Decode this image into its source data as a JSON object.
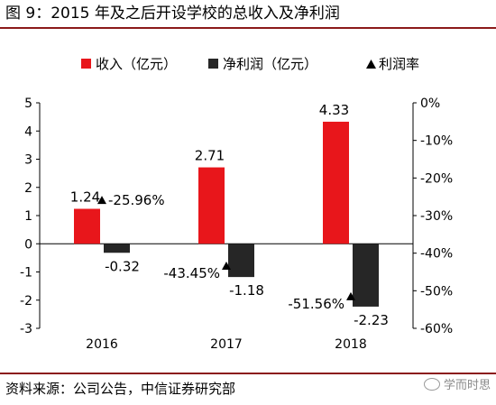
{
  "header": {
    "title": "图 9：2015 年及之后开设学校的总收入及净利润"
  },
  "footer": {
    "source": "资料来源：公司公告，中信证券研究部",
    "watermark": "学而时思"
  },
  "legend": {
    "items": [
      "收入（亿元）",
      "净利润（亿元）",
      "利润率"
    ]
  },
  "colors": {
    "revenue": "#e8161b",
    "profit": "#262626",
    "margin": "#000000",
    "rule": "#8b1a1a"
  },
  "icons": {
    "revenue_legend": "red-square-icon",
    "profit_legend": "dark-square-icon",
    "margin_legend": "triangle-icon",
    "watermark": "wechat-logo-icon"
  },
  "chart_data": {
    "type": "bar",
    "categories": [
      "2016",
      "2017",
      "2018"
    ],
    "series": [
      {
        "name": "收入（亿元）",
        "type": "bar",
        "axis": "left",
        "values": [
          1.24,
          2.71,
          4.33
        ],
        "labels": [
          "1.24",
          "2.71",
          "4.33"
        ]
      },
      {
        "name": "净利润（亿元）",
        "type": "bar",
        "axis": "left",
        "values": [
          -0.32,
          -1.18,
          -2.23
        ],
        "labels": [
          "-0.32",
          "-1.18",
          "-2.23"
        ]
      },
      {
        "name": "利润率",
        "type": "scatter",
        "axis": "right",
        "values": [
          -25.96,
          -43.45,
          -51.56
        ],
        "labels": [
          "-25.96%",
          "-43.45%",
          "-51.56%"
        ]
      }
    ],
    "y_left": {
      "min": -3,
      "max": 5,
      "ticks": [
        "5",
        "4",
        "3",
        "2",
        "1",
        "0",
        "-1",
        "-2",
        "-3"
      ]
    },
    "y_right": {
      "min": -60,
      "max": 0,
      "ticks": [
        "0%",
        "-10%",
        "-20%",
        "-30%",
        "-40%",
        "-50%",
        "-60%"
      ]
    },
    "grid": false,
    "legend_position": "top"
  }
}
